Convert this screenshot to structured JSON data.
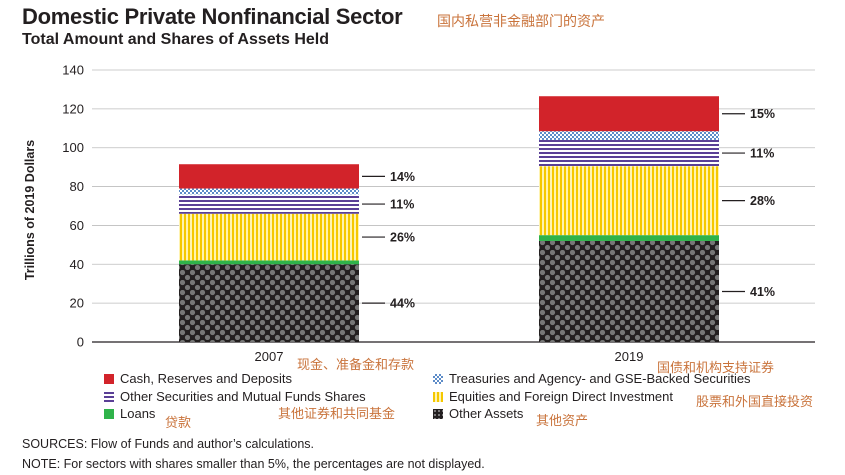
{
  "title": "Domestic Private Nonfinancial Sector",
  "title_cn": "国内私营非金融部门的资产",
  "subtitle": "Total Amount and Shares of Assets Held",
  "chart_data": {
    "type": "bar",
    "stacked": true,
    "categories": [
      "2007",
      "2019"
    ],
    "ylabel": "Trillions of 2019 Dollars",
    "ylim": [
      0,
      140
    ],
    "yticks": [
      0,
      20,
      40,
      60,
      80,
      100,
      120,
      140
    ],
    "grid": true,
    "series": [
      {
        "name": "Other Assets",
        "values": [
          40,
          52
        ],
        "color": "#231f20",
        "pattern": "dots",
        "share_labels": [
          "44%",
          "41%"
        ]
      },
      {
        "name": "Loans",
        "values": [
          2,
          3
        ],
        "color": "#2fb34a",
        "pattern": "solid",
        "share_labels": [
          "",
          ""
        ]
      },
      {
        "name": "Equities and Foreign Direct Investment",
        "values": [
          24,
          35.5
        ],
        "color": "#f5d000",
        "pattern": "vlines",
        "share_labels": [
          "26%",
          "28%"
        ]
      },
      {
        "name": "Other Securities and Mutual Funds Shares",
        "values": [
          10,
          13.5
        ],
        "color": "#5a3f96",
        "pattern": "hlines",
        "share_labels": [
          "11%",
          "11%"
        ]
      },
      {
        "name": "Treasuries and Agency- and GSE-Backed Securities",
        "values": [
          3,
          4.5
        ],
        "color": "#7fa6d6",
        "pattern": "checks",
        "share_labels": [
          "",
          ""
        ]
      },
      {
        "name": "Cash, Reserves and Deposits",
        "values": [
          12.5,
          18
        ],
        "color": "#d2232a",
        "pattern": "solid",
        "share_labels": [
          "14%",
          "15%"
        ]
      }
    ]
  },
  "annotations_cn": {
    "cash": "现金、准备金和存款",
    "treasuries": "国债和机构支持证券",
    "other_securities": "其他证券和共同基金",
    "equities": "股票和外国直接投资",
    "loans": "贷款",
    "other_assets": "其他资产"
  },
  "legend": {
    "left": [
      {
        "label": "Cash, Reserves and Deposits",
        "color": "#d2232a"
      },
      {
        "label": "Other Securities and Mutual Funds Shares",
        "color": "#5a3f96"
      },
      {
        "label": "Loans",
        "color": "#2fb34a"
      }
    ],
    "right": [
      {
        "label": "Treasuries and Agency- and GSE-Backed Securities",
        "color": "#7fa6d6"
      },
      {
        "label": "Equities and Foreign Direct Investment",
        "color": "#f5d000"
      },
      {
        "label": "Other Assets",
        "color": "#231f20"
      }
    ]
  },
  "footer": {
    "sources": "SOURCES: Flow of Funds and author’s calculations.",
    "note": "NOTE: For sectors with shares smaller than 5%, the percentages are not displayed."
  }
}
